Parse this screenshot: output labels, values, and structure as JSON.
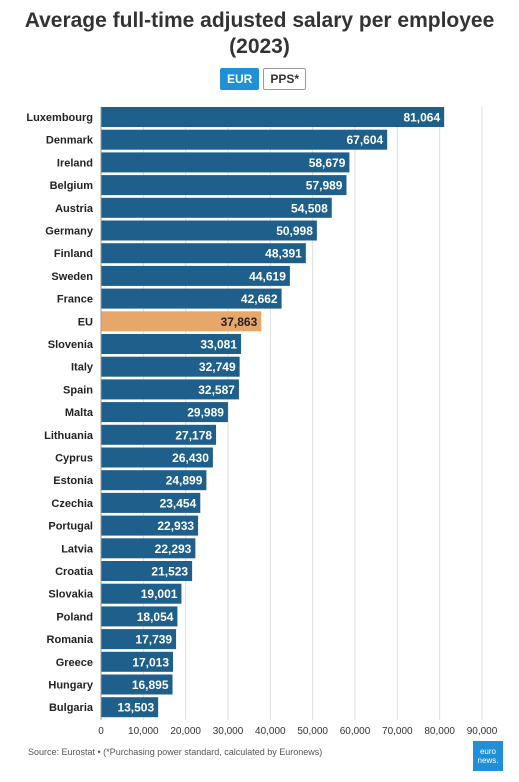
{
  "title": "Average full-time adjusted salary per employee (2023)",
  "toggle": {
    "options": [
      "EUR",
      "PPS*"
    ],
    "selected": "EUR"
  },
  "source": "Source: Eurostat • (*Purchasing power standard, calculated by Euronews)",
  "logo_text": "euro news.",
  "colors": {
    "bar": "#1f5f8b",
    "highlight": "#e8a76a",
    "active_toggle": "#1f8fd6",
    "grid": "#dddddd"
  },
  "chart_data": {
    "type": "bar",
    "orientation": "horizontal",
    "title": "Average full-time adjusted salary per employee (2023)",
    "categories": [
      "Luxembourg",
      "Denmark",
      "Ireland",
      "Belgium",
      "Austria",
      "Germany",
      "Finland",
      "Sweden",
      "France",
      "EU",
      "Slovenia",
      "Italy",
      "Spain",
      "Malta",
      "Lithuania",
      "Cyprus",
      "Estonia",
      "Czechia",
      "Portugal",
      "Latvia",
      "Croatia",
      "Slovakia",
      "Poland",
      "Romania",
      "Greece",
      "Hungary",
      "Bulgaria"
    ],
    "values": [
      81064,
      67604,
      58679,
      57989,
      54508,
      50998,
      48391,
      44619,
      42662,
      37863,
      33081,
      32749,
      32587,
      29989,
      27178,
      26430,
      24899,
      23454,
      22933,
      22293,
      21523,
      19001,
      18054,
      17739,
      17013,
      16895,
      13503
    ],
    "value_labels": [
      "81,064",
      "67,604",
      "58,679",
      "57,989",
      "54,508",
      "50,998",
      "48,391",
      "44,619",
      "42,662",
      "37,863",
      "33,081",
      "32,749",
      "32,587",
      "29,989",
      "27,178",
      "26,430",
      "24,899",
      "23,454",
      "22,933",
      "22,293",
      "21,523",
      "19,001",
      "18,054",
      "17,739",
      "17,013",
      "16,895",
      "13,503"
    ],
    "highlight": "EU",
    "xlim": [
      0,
      90000
    ],
    "xticks": [
      0,
      10000,
      20000,
      30000,
      40000,
      50000,
      60000,
      70000,
      80000,
      90000
    ],
    "xtick_labels": [
      "0",
      "10,000",
      "20,000",
      "30,000",
      "40,000",
      "50,000",
      "60,000",
      "70,000",
      "80,000",
      "90,000"
    ],
    "grid": true,
    "xlabel": "",
    "ylabel": ""
  }
}
